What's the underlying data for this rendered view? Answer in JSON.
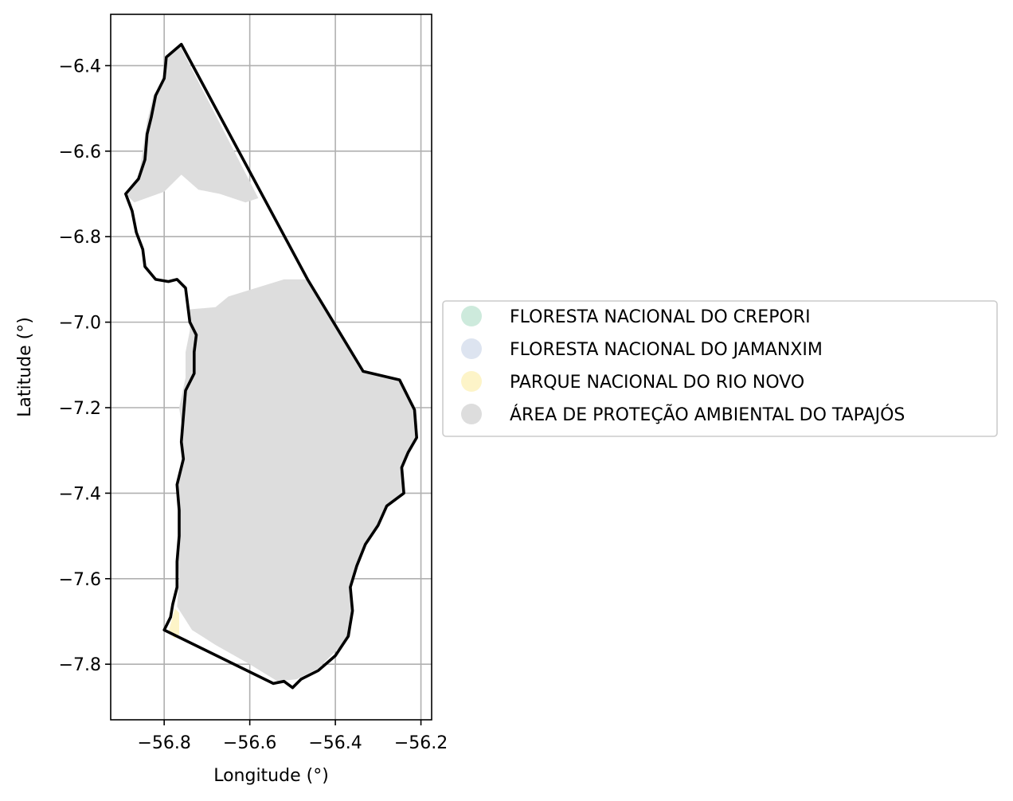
{
  "chart_data": {
    "type": "map",
    "xlabel": "Longitude (°)",
    "ylabel": "Latitude (°)",
    "xlim": [
      -56.925,
      -56.175
    ],
    "ylim": [
      -7.93,
      -6.28
    ],
    "xticks": [
      -56.8,
      -56.6,
      -56.4,
      -56.2
    ],
    "xtick_labels": [
      "−56.8",
      "−56.6",
      "−56.4",
      "−56.2"
    ],
    "yticks": [
      -6.4,
      -6.6,
      -6.8,
      -7.0,
      -7.2,
      -7.4,
      -7.6,
      -7.8
    ],
    "ytick_labels": [
      "−6.4",
      "−6.6",
      "−6.8",
      "−7.0",
      "−7.2",
      "−7.4",
      "−7.6",
      "−7.8"
    ],
    "grid": true,
    "legend_position": "right",
    "legend": [
      {
        "name": "FLORESTA NACIONAL DO CREPORI",
        "color": "#cdeadc"
      },
      {
        "name": "FLORESTA NACIONAL DO JAMANXIM",
        "color": "#dde4f0"
      },
      {
        "name": "PARQUE NACIONAL DO RIO NOVO",
        "color": "#fdf4c8"
      },
      {
        "name": "ÁREA DE PROTEÇÃO AMBIENTAL DO TAPAJÓS",
        "color": "#dddddd"
      }
    ],
    "regions": [
      {
        "name": "ÁREA DE PROTEÇÃO AMBIENTAL DO TAPAJÓS",
        "color": "#dddddd",
        "polygons": [
          [
            [
              -56.765,
              -6.35
            ],
            [
              -56.79,
              -6.38
            ],
            [
              -56.8,
              -6.43
            ],
            [
              -56.825,
              -6.47
            ],
            [
              -56.84,
              -6.53
            ],
            [
              -56.85,
              -6.6
            ],
            [
              -56.86,
              -6.66
            ],
            [
              -56.89,
              -6.7
            ],
            [
              -56.87,
              -6.72
            ],
            [
              -56.8,
              -6.695
            ],
            [
              -56.76,
              -6.655
            ],
            [
              -56.72,
              -6.69
            ],
            [
              -56.67,
              -6.7
            ],
            [
              -56.61,
              -6.72
            ],
            [
              -56.58,
              -6.71
            ]
          ],
          [
            [
              -56.74,
              -6.97
            ],
            [
              -56.68,
              -6.965
            ],
            [
              -56.65,
              -6.94
            ],
            [
              -56.52,
              -6.9
            ],
            [
              -56.465,
              -6.9
            ],
            [
              -56.34,
              -7.115
            ],
            [
              -56.255,
              -7.135
            ],
            [
              -56.215,
              -7.195
            ],
            [
              -56.21,
              -7.265
            ],
            [
              -56.23,
              -7.31
            ],
            [
              -56.245,
              -7.34
            ],
            [
              -56.24,
              -7.4
            ],
            [
              -56.28,
              -7.43
            ],
            [
              -56.305,
              -7.48
            ],
            [
              -56.33,
              -7.525
            ],
            [
              -56.355,
              -7.575
            ],
            [
              -56.365,
              -7.62
            ],
            [
              -56.36,
              -7.675
            ],
            [
              -56.365,
              -7.735
            ],
            [
              -56.405,
              -7.775
            ],
            [
              -56.44,
              -7.81
            ],
            [
              -56.49,
              -7.835
            ],
            [
              -56.535,
              -7.84
            ],
            [
              -56.6,
              -7.8
            ],
            [
              -56.68,
              -7.755
            ],
            [
              -56.735,
              -7.72
            ],
            [
              -56.77,
              -7.665
            ],
            [
              -56.765,
              -7.6
            ],
            [
              -56.77,
              -7.53
            ],
            [
              -56.765,
              -7.46
            ],
            [
              -56.77,
              -7.4
            ],
            [
              -56.76,
              -7.34
            ],
            [
              -56.755,
              -7.27
            ],
            [
              -56.765,
              -7.2
            ],
            [
              -56.75,
              -7.13
            ],
            [
              -56.75,
              -7.07
            ],
            [
              -56.74,
              -7.02
            ]
          ]
        ]
      },
      {
        "name": "PARQUE NACIONAL DO RIO NOVO",
        "color": "#fdf4c8",
        "polygons": [
          [
            [
              -56.775,
              -7.67
            ],
            [
              -56.765,
              -7.68
            ],
            [
              -56.765,
              -7.73
            ],
            [
              -56.775,
              -7.74
            ],
            [
              -56.79,
              -7.725
            ]
          ]
        ]
      }
    ],
    "boundary": {
      "color": "#000000",
      "coords": [
        [
          -56.76,
          -6.35
        ],
        [
          -56.795,
          -6.38
        ],
        [
          -56.8,
          -6.43
        ],
        [
          -56.82,
          -6.47
        ],
        [
          -56.83,
          -6.52
        ],
        [
          -56.84,
          -6.56
        ],
        [
          -56.845,
          -6.62
        ],
        [
          -56.86,
          -6.665
        ],
        [
          -56.89,
          -6.7
        ],
        [
          -56.875,
          -6.74
        ],
        [
          -56.865,
          -6.79
        ],
        [
          -56.85,
          -6.83
        ],
        [
          -56.845,
          -6.87
        ],
        [
          -56.82,
          -6.9
        ],
        [
          -56.79,
          -6.905
        ],
        [
          -56.77,
          -6.9
        ],
        [
          -56.75,
          -6.92
        ],
        [
          -56.745,
          -6.96
        ],
        [
          -56.74,
          -7.0
        ],
        [
          -56.725,
          -7.03
        ],
        [
          -56.73,
          -7.07
        ],
        [
          -56.73,
          -7.12
        ],
        [
          -56.75,
          -7.16
        ],
        [
          -56.755,
          -7.22
        ],
        [
          -56.76,
          -7.28
        ],
        [
          -56.755,
          -7.32
        ],
        [
          -56.77,
          -7.38
        ],
        [
          -56.765,
          -7.44
        ],
        [
          -56.765,
          -7.5
        ],
        [
          -56.77,
          -7.56
        ],
        [
          -56.77,
          -7.62
        ],
        [
          -56.78,
          -7.66
        ],
        [
          -56.785,
          -7.69
        ],
        [
          -56.8,
          -7.72
        ],
        [
          -56.545,
          -7.845
        ],
        [
          -56.52,
          -7.84
        ],
        [
          -56.5,
          -7.855
        ],
        [
          -56.48,
          -7.835
        ],
        [
          -56.44,
          -7.815
        ],
        [
          -56.4,
          -7.78
        ],
        [
          -56.37,
          -7.735
        ],
        [
          -56.36,
          -7.675
        ],
        [
          -56.365,
          -7.62
        ],
        [
          -56.35,
          -7.57
        ],
        [
          -56.33,
          -7.52
        ],
        [
          -56.3,
          -7.475
        ],
        [
          -56.28,
          -7.43
        ],
        [
          -56.24,
          -7.4
        ],
        [
          -56.245,
          -7.34
        ],
        [
          -56.23,
          -7.305
        ],
        [
          -56.21,
          -7.27
        ],
        [
          -56.215,
          -7.205
        ],
        [
          -56.25,
          -7.135
        ],
        [
          -56.335,
          -7.115
        ],
        [
          -56.465,
          -6.9
        ],
        [
          -56.76,
          -6.35
        ]
      ]
    }
  }
}
